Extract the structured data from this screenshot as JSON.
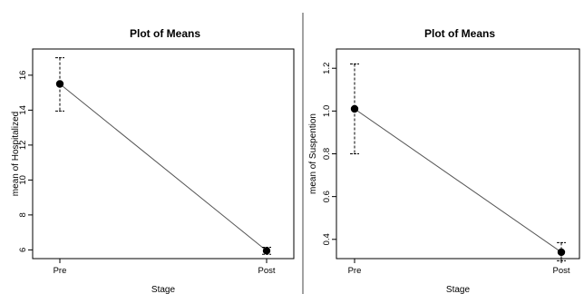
{
  "chart_data": [
    {
      "type": "line",
      "title": "Plot of Means",
      "xlabel": "Stage",
      "ylabel": "mean of Hospitalized",
      "categories": [
        "Pre",
        "Post"
      ],
      "yticks": [
        "6",
        "8",
        "10",
        "12",
        "14",
        "16"
      ],
      "ylim": [
        5.5,
        17.5
      ],
      "series": [
        {
          "values": [
            15.5,
            5.95
          ],
          "lower": [
            13.95,
            5.75
          ],
          "upper": [
            17.0,
            6.15
          ]
        }
      ],
      "grid": false
    },
    {
      "type": "line",
      "title": "Plot of Means",
      "xlabel": "Stage",
      "ylabel": "mean of Suspention",
      "categories": [
        "Pre",
        "Post"
      ],
      "yticks": [
        "0.4",
        "0.6",
        "0.8",
        "1.0",
        "1.2"
      ],
      "ylim": [
        0.31,
        1.29
      ],
      "series": [
        {
          "values": [
            1.01,
            0.34
          ],
          "lower": [
            0.8,
            0.3
          ],
          "upper": [
            1.22,
            0.385
          ]
        }
      ],
      "grid": false
    }
  ]
}
